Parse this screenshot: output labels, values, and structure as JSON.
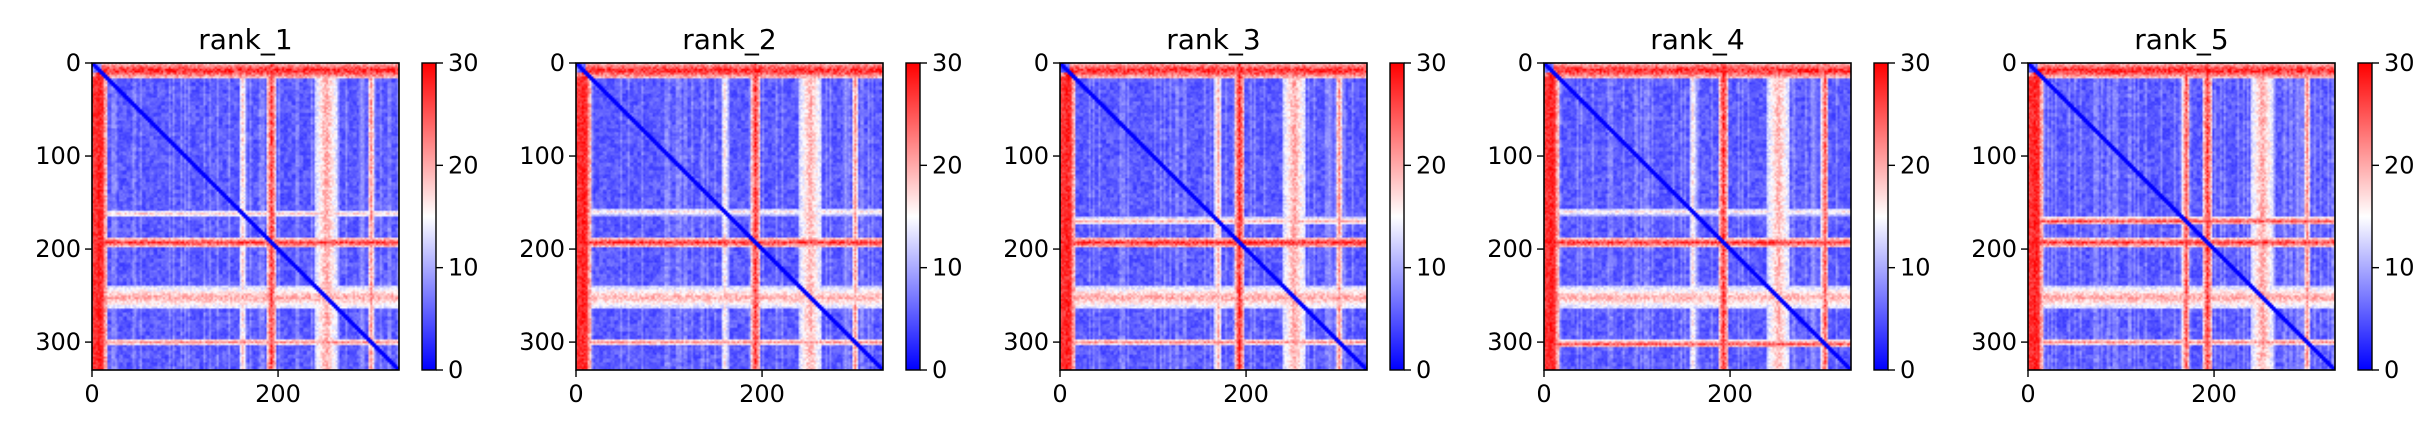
{
  "figure": {
    "background": "#ffffff",
    "colormap": "bwr",
    "colormap_stops": [
      "#0000ff",
      "#ffffff",
      "#ff0000"
    ]
  },
  "chart_data": [
    {
      "type": "heatmap",
      "title": "rank_1",
      "matrix_size": 330,
      "xlim": [
        0,
        330
      ],
      "ylim": [
        330,
        0
      ],
      "x_ticks": [
        0,
        200
      ],
      "y_ticks": [
        0,
        100,
        200,
        300
      ],
      "colorbar": {
        "range": [
          0,
          30
        ],
        "ticks": [
          0,
          10,
          20,
          30
        ]
      },
      "high_rows": [
        {
          "center": 8,
          "halfwidth": 9,
          "strength": 0.95,
          "range": [
            10,
            330
          ]
        },
        {
          "center": 162,
          "halfwidth": 4,
          "strength": 0.6,
          "range": [
            0,
            330
          ]
        },
        {
          "center": 193,
          "halfwidth": 5,
          "strength": 0.9,
          "range": [
            0,
            330
          ]
        },
        {
          "center": 252,
          "halfwidth": 12,
          "strength": 0.68,
          "range": [
            0,
            330
          ]
        },
        {
          "center": 300,
          "halfwidth": 4,
          "strength": 0.72,
          "range": [
            0,
            330
          ]
        }
      ],
      "high_cols": [
        {
          "center": 258,
          "halfwidth": 8,
          "strength": 0.45,
          "range": [
            15,
            330
          ]
        },
        {
          "center": 290,
          "halfwidth": 4,
          "strength": 0.3,
          "range": [
            15,
            330
          ]
        }
      ]
    },
    {
      "type": "heatmap",
      "title": "rank_2",
      "matrix_size": 330,
      "xlim": [
        0,
        330
      ],
      "ylim": [
        330,
        0
      ],
      "x_ticks": [
        0,
        200
      ],
      "y_ticks": [
        0,
        100,
        200,
        300
      ],
      "colorbar": {
        "range": [
          0,
          30
        ],
        "ticks": [
          0,
          10,
          20,
          30
        ]
      },
      "high_rows": [
        {
          "center": 8,
          "halfwidth": 9,
          "strength": 0.95,
          "range": [
            10,
            330
          ]
        },
        {
          "center": 160,
          "halfwidth": 4,
          "strength": 0.55,
          "range": [
            0,
            330
          ]
        },
        {
          "center": 193,
          "halfwidth": 5,
          "strength": 0.92,
          "range": [
            0,
            330
          ]
        },
        {
          "center": 252,
          "halfwidth": 12,
          "strength": 0.66,
          "range": [
            0,
            330
          ]
        },
        {
          "center": 300,
          "halfwidth": 4,
          "strength": 0.7,
          "range": [
            0,
            330
          ]
        }
      ],
      "high_cols": [
        {
          "center": 258,
          "halfwidth": 7,
          "strength": 0.4,
          "range": [
            15,
            330
          ]
        },
        {
          "center": 290,
          "halfwidth": 4,
          "strength": 0.3,
          "range": [
            15,
            330
          ]
        }
      ]
    },
    {
      "type": "heatmap",
      "title": "rank_3",
      "matrix_size": 330,
      "xlim": [
        0,
        330
      ],
      "ylim": [
        330,
        0
      ],
      "x_ticks": [
        0,
        200
      ],
      "y_ticks": [
        0,
        100,
        200,
        300
      ],
      "colorbar": {
        "range": [
          0,
          30
        ],
        "ticks": [
          0,
          10,
          20,
          30
        ]
      },
      "high_rows": [
        {
          "center": 8,
          "halfwidth": 9,
          "strength": 0.95,
          "range": [
            10,
            330
          ]
        },
        {
          "center": 170,
          "halfwidth": 4,
          "strength": 0.65,
          "range": [
            0,
            330
          ]
        },
        {
          "center": 193,
          "halfwidth": 5,
          "strength": 0.95,
          "range": [
            0,
            330
          ]
        },
        {
          "center": 252,
          "halfwidth": 12,
          "strength": 0.68,
          "range": [
            0,
            330
          ]
        },
        {
          "center": 300,
          "halfwidth": 4,
          "strength": 0.72,
          "range": [
            0,
            330
          ]
        }
      ],
      "high_cols": [
        {
          "center": 255,
          "halfwidth": 8,
          "strength": 0.45,
          "range": [
            15,
            330
          ]
        },
        {
          "center": 290,
          "halfwidth": 4,
          "strength": 0.3,
          "range": [
            15,
            330
          ]
        }
      ]
    },
    {
      "type": "heatmap",
      "title": "rank_4",
      "matrix_size": 330,
      "xlim": [
        0,
        330
      ],
      "ylim": [
        330,
        0
      ],
      "x_ticks": [
        0,
        200
      ],
      "y_ticks": [
        0,
        100,
        200,
        300
      ],
      "colorbar": {
        "range": [
          0,
          30
        ],
        "ticks": [
          0,
          10,
          20,
          30
        ]
      },
      "high_rows": [
        {
          "center": 8,
          "halfwidth": 9,
          "strength": 0.95,
          "range": [
            10,
            330
          ]
        },
        {
          "center": 160,
          "halfwidth": 4,
          "strength": 0.55,
          "range": [
            0,
            330
          ]
        },
        {
          "center": 193,
          "halfwidth": 5,
          "strength": 0.92,
          "range": [
            0,
            330
          ]
        },
        {
          "center": 252,
          "halfwidth": 12,
          "strength": 0.66,
          "range": [
            0,
            330
          ]
        },
        {
          "center": 302,
          "halfwidth": 4,
          "strength": 0.85,
          "range": [
            0,
            330
          ]
        }
      ],
      "high_cols": [
        {
          "center": 255,
          "halfwidth": 8,
          "strength": 0.45,
          "range": [
            15,
            330
          ]
        },
        {
          "center": 290,
          "halfwidth": 4,
          "strength": 0.3,
          "range": [
            15,
            330
          ]
        }
      ]
    },
    {
      "type": "heatmap",
      "title": "rank_5",
      "matrix_size": 330,
      "xlim": [
        0,
        330
      ],
      "ylim": [
        330,
        0
      ],
      "x_ticks": [
        0,
        200
      ],
      "y_ticks": [
        0,
        100,
        200,
        300
      ],
      "colorbar": {
        "range": [
          0,
          30
        ],
        "ticks": [
          0,
          10,
          20,
          30
        ]
      },
      "high_rows": [
        {
          "center": 8,
          "halfwidth": 9,
          "strength": 0.95,
          "range": [
            10,
            330
          ]
        },
        {
          "center": 170,
          "halfwidth": 4,
          "strength": 0.85,
          "range": [
            0,
            330
          ]
        },
        {
          "center": 193,
          "halfwidth": 5,
          "strength": 0.9,
          "range": [
            0,
            330
          ]
        },
        {
          "center": 252,
          "halfwidth": 12,
          "strength": 0.68,
          "range": [
            0,
            330
          ]
        },
        {
          "center": 300,
          "halfwidth": 4,
          "strength": 0.72,
          "range": [
            0,
            330
          ]
        }
      ],
      "high_cols": [
        {
          "center": 258,
          "halfwidth": 8,
          "strength": 0.45,
          "range": [
            15,
            330
          ]
        },
        {
          "center": 290,
          "halfwidth": 4,
          "strength": 0.3,
          "range": [
            15,
            330
          ]
        }
      ]
    }
  ]
}
